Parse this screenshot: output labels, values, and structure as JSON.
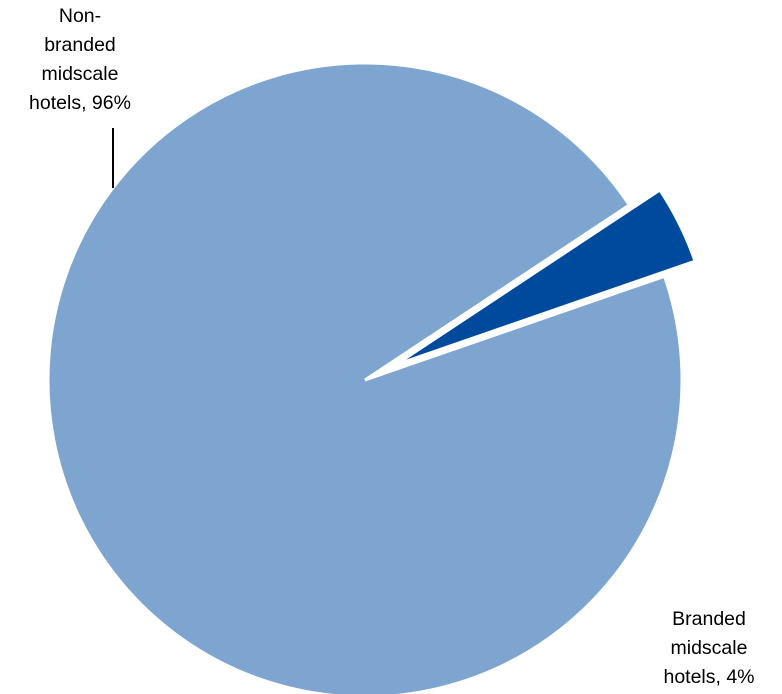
{
  "chart_data": {
    "type": "pie",
    "title": "",
    "slices": [
      {
        "label_lines": [
          "Non-",
          "branded",
          "midscale",
          "hotels, 96%"
        ],
        "category": "Non-branded midscale hotels",
        "value": 96,
        "color": "#7ea5d0",
        "exploded": false
      },
      {
        "label_lines": [
          "Branded",
          "midscale",
          "hotels, 4%"
        ],
        "category": "Branded midscale hotels",
        "value": 4,
        "color": "#004a9e",
        "exploded": true
      }
    ],
    "legend": "none",
    "start_angle_deg": 33.5,
    "direction": "counterclockwise"
  }
}
